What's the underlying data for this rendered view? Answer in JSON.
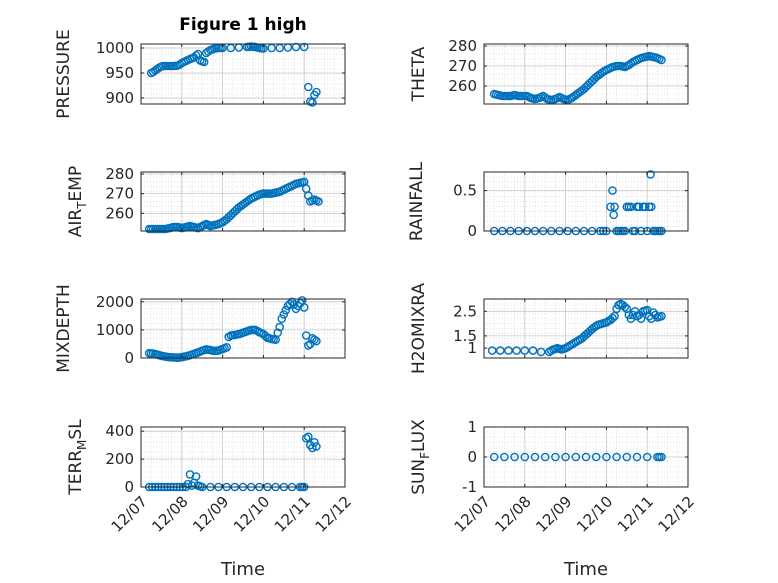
{
  "title": "Figure 1 high",
  "x_tick_labels": [
    "12/07",
    "12/08",
    "12/09",
    "12/10",
    "12/11",
    "12/12"
  ],
  "x_axis_label": "Time",
  "colors": {
    "marker": "#0072BD",
    "axes": "#262626",
    "grid": "#dcdcdc",
    "background": "#ffffff"
  },
  "chart_data": [
    {
      "type": "scatter",
      "id": "pressure",
      "ylabel": "PRESSURE",
      "title": "Figure 1 high",
      "ylim": [
        888,
        1008
      ],
      "yticks": [
        900,
        950,
        1000
      ],
      "ytick_labels": [
        "900",
        "950",
        "1000"
      ],
      "xlim": [
        7,
        12
      ],
      "grid": true,
      "marker": "open-circle",
      "points": [
        [
          7.25,
          950
        ],
        [
          7.3,
          952
        ],
        [
          7.35,
          955
        ],
        [
          7.4,
          958
        ],
        [
          7.45,
          961
        ],
        [
          7.5,
          963
        ],
        [
          7.55,
          964
        ],
        [
          7.6,
          964
        ],
        [
          7.7,
          964
        ],
        [
          7.8,
          964
        ],
        [
          7.9,
          965
        ],
        [
          7.95,
          967
        ],
        [
          8.0,
          970
        ],
        [
          8.1,
          974
        ],
        [
          8.2,
          978
        ],
        [
          8.3,
          981
        ],
        [
          8.35,
          985
        ],
        [
          8.4,
          988
        ],
        [
          8.45,
          975
        ],
        [
          8.55,
          972
        ],
        [
          8.6,
          990
        ],
        [
          8.7,
          996
        ],
        [
          8.8,
          999
        ],
        [
          8.9,
          1000
        ],
        [
          9.0,
          1000
        ],
        [
          9.2,
          1000
        ],
        [
          9.4,
          1001
        ],
        [
          9.6,
          1002
        ],
        [
          9.7,
          1003
        ],
        [
          9.8,
          1002
        ],
        [
          9.9,
          1000
        ],
        [
          10.0,
          999
        ],
        [
          10.2,
          1000
        ],
        [
          10.4,
          1000
        ],
        [
          10.6,
          1001
        ],
        [
          10.8,
          1002
        ],
        [
          11.0,
          1002
        ],
        [
          11.1,
          922
        ],
        [
          11.15,
          893
        ],
        [
          11.2,
          891
        ],
        [
          11.25,
          906
        ],
        [
          11.3,
          912
        ]
      ]
    },
    {
      "type": "scatter",
      "id": "theta",
      "ylabel": "THETA",
      "ylim": [
        251,
        281
      ],
      "yticks": [
        260,
        270,
        280
      ],
      "ytick_labels": [
        "260",
        "270",
        "280"
      ],
      "xlim": [
        7,
        12
      ],
      "grid": true,
      "marker": "open-circle",
      "points": [
        [
          7.25,
          256
        ],
        [
          7.35,
          255.5
        ],
        [
          7.45,
          255
        ],
        [
          7.55,
          255
        ],
        [
          7.65,
          255
        ],
        [
          7.75,
          255.5
        ],
        [
          7.85,
          255
        ],
        [
          7.95,
          255
        ],
        [
          8.05,
          255
        ],
        [
          8.15,
          254
        ],
        [
          8.25,
          253.5
        ],
        [
          8.35,
          254
        ],
        [
          8.45,
          255
        ],
        [
          8.55,
          253.5
        ],
        [
          8.65,
          253
        ],
        [
          8.75,
          253.5
        ],
        [
          8.85,
          254.5
        ],
        [
          8.95,
          253.5
        ],
        [
          9.05,
          253
        ],
        [
          9.15,
          254
        ],
        [
          9.25,
          255.5
        ],
        [
          9.35,
          257
        ],
        [
          9.45,
          258.5
        ],
        [
          9.55,
          260.5
        ],
        [
          9.65,
          262.5
        ],
        [
          9.75,
          264.5
        ],
        [
          9.85,
          266
        ],
        [
          9.95,
          267.5
        ],
        [
          10.05,
          268.5
        ],
        [
          10.15,
          269.5
        ],
        [
          10.25,
          270
        ],
        [
          10.35,
          270
        ],
        [
          10.45,
          269.5
        ],
        [
          10.55,
          270.5
        ],
        [
          10.65,
          272
        ],
        [
          10.75,
          273
        ],
        [
          10.85,
          274
        ],
        [
          10.95,
          274.5
        ],
        [
          11.05,
          275
        ],
        [
          11.15,
          274.5
        ],
        [
          11.25,
          274
        ],
        [
          11.35,
          273
        ]
      ]
    },
    {
      "type": "scatter",
      "id": "air_temp",
      "ylabel": "AIR_TEMP",
      "ylabel_main": "AIR",
      "ylabel_sub": "T",
      "ylabel_rest": "EMP",
      "ylim": [
        251,
        281
      ],
      "yticks": [
        260,
        270,
        280
      ],
      "ytick_labels": [
        "260",
        "270",
        "280"
      ],
      "xlim": [
        7,
        12
      ],
      "grid": true,
      "marker": "open-circle",
      "points": [
        [
          7.2,
          252
        ],
        [
          7.3,
          252
        ],
        [
          7.4,
          252
        ],
        [
          7.5,
          252
        ],
        [
          7.6,
          252
        ],
        [
          7.7,
          252.5
        ],
        [
          7.8,
          253
        ],
        [
          7.9,
          253
        ],
        [
          8.0,
          252.5
        ],
        [
          8.1,
          253
        ],
        [
          8.2,
          253.5
        ],
        [
          8.3,
          253
        ],
        [
          8.4,
          252.5
        ],
        [
          8.5,
          253.5
        ],
        [
          8.6,
          254.5
        ],
        [
          8.7,
          253.5
        ],
        [
          8.8,
          254
        ],
        [
          8.9,
          254.5
        ],
        [
          9.0,
          255.5
        ],
        [
          9.1,
          257
        ],
        [
          9.2,
          259
        ],
        [
          9.3,
          261
        ],
        [
          9.4,
          263
        ],
        [
          9.5,
          264.5
        ],
        [
          9.6,
          266
        ],
        [
          9.7,
          267.5
        ],
        [
          9.8,
          268.5
        ],
        [
          9.9,
          269.5
        ],
        [
          10.0,
          270
        ],
        [
          10.1,
          270
        ],
        [
          10.2,
          270
        ],
        [
          10.3,
          270.5
        ],
        [
          10.4,
          271
        ],
        [
          10.5,
          272
        ],
        [
          10.6,
          273
        ],
        [
          10.7,
          274
        ],
        [
          10.8,
          275
        ],
        [
          10.9,
          275.5
        ],
        [
          11.0,
          276
        ],
        [
          11.1,
          269
        ],
        [
          11.15,
          266
        ],
        [
          11.2,
          266.5
        ],
        [
          11.25,
          267
        ],
        [
          11.35,
          266
        ]
      ]
    },
    {
      "type": "scatter",
      "id": "rainfall",
      "ylabel": "RAINFALL",
      "ylim": [
        0,
        0.73
      ],
      "yticks": [
        0,
        0.5
      ],
      "ytick_labels": [
        "0",
        "0.5"
      ],
      "xlim": [
        7,
        12
      ],
      "grid": true,
      "marker": "open-circle",
      "points": [
        [
          7.25,
          0
        ],
        [
          7.45,
          0
        ],
        [
          7.65,
          0
        ],
        [
          7.85,
          0
        ],
        [
          8.05,
          0
        ],
        [
          8.25,
          0
        ],
        [
          8.45,
          0
        ],
        [
          8.65,
          0
        ],
        [
          8.85,
          0
        ],
        [
          9.05,
          0
        ],
        [
          9.25,
          0
        ],
        [
          9.45,
          0
        ],
        [
          9.65,
          0
        ],
        [
          9.85,
          0
        ],
        [
          10.0,
          0
        ],
        [
          10.1,
          0.3
        ],
        [
          10.15,
          0.5
        ],
        [
          10.18,
          0.2
        ],
        [
          10.2,
          0.3
        ],
        [
          10.25,
          0
        ],
        [
          10.3,
          0
        ],
        [
          10.35,
          0
        ],
        [
          10.45,
          0
        ],
        [
          10.5,
          0.3
        ],
        [
          10.55,
          0.3
        ],
        [
          10.6,
          0.3
        ],
        [
          10.65,
          0
        ],
        [
          10.7,
          0
        ],
        [
          10.75,
          0.3
        ],
        [
          10.8,
          0.3
        ],
        [
          10.85,
          0
        ],
        [
          10.9,
          0.3
        ],
        [
          10.95,
          0.3
        ],
        [
          11.0,
          0
        ],
        [
          11.05,
          0.3
        ],
        [
          11.08,
          0.7
        ],
        [
          11.1,
          0.3
        ],
        [
          11.15,
          0
        ],
        [
          11.25,
          0
        ],
        [
          11.35,
          0
        ]
      ]
    },
    {
      "type": "scatter",
      "id": "mixdepth",
      "ylabel": "MIXDEPTH",
      "ylim": [
        0,
        2100
      ],
      "yticks": [
        0,
        1000,
        2000
      ],
      "ytick_labels": [
        "0",
        "1000",
        "2000"
      ],
      "xlim": [
        7,
        12
      ],
      "grid": true,
      "marker": "open-circle",
      "points": [
        [
          7.2,
          170
        ],
        [
          7.3,
          160
        ],
        [
          7.4,
          120
        ],
        [
          7.5,
          80
        ],
        [
          7.6,
          50
        ],
        [
          7.7,
          30
        ],
        [
          7.8,
          20
        ],
        [
          7.9,
          10
        ],
        [
          8.0,
          30
        ],
        [
          8.1,
          60
        ],
        [
          8.2,
          100
        ],
        [
          8.3,
          150
        ],
        [
          8.4,
          200
        ],
        [
          8.5,
          260
        ],
        [
          8.6,
          310
        ],
        [
          8.7,
          280
        ],
        [
          8.8,
          250
        ],
        [
          8.9,
          270
        ],
        [
          9.0,
          320
        ],
        [
          9.1,
          380
        ],
        [
          9.15,
          750
        ],
        [
          9.2,
          800
        ],
        [
          9.3,
          820
        ],
        [
          9.4,
          850
        ],
        [
          9.5,
          900
        ],
        [
          9.6,
          950
        ],
        [
          9.7,
          1000
        ],
        [
          9.8,
          1000
        ],
        [
          9.9,
          920
        ],
        [
          10.0,
          850
        ],
        [
          10.1,
          720
        ],
        [
          10.2,
          680
        ],
        [
          10.3,
          650
        ],
        [
          10.35,
          900
        ],
        [
          10.4,
          1100
        ],
        [
          10.45,
          1400
        ],
        [
          10.5,
          1550
        ],
        [
          10.55,
          1700
        ],
        [
          10.6,
          1850
        ],
        [
          10.7,
          2000
        ],
        [
          10.75,
          1900
        ],
        [
          10.8,
          1750
        ],
        [
          10.9,
          1950
        ],
        [
          10.95,
          2050
        ],
        [
          11.0,
          1800
        ],
        [
          11.05,
          800
        ],
        [
          11.1,
          450
        ],
        [
          11.15,
          500
        ],
        [
          11.2,
          700
        ],
        [
          11.3,
          600
        ]
      ]
    },
    {
      "type": "scatter",
      "id": "h2omixra",
      "ylabel": "H2OMIXRA",
      "ylim": [
        0.6,
        3.0
      ],
      "yticks": [
        1,
        1.5,
        2.5
      ],
      "ytick_labels": [
        "1",
        "1.5",
        "2.5"
      ],
      "xlim": [
        7,
        12
      ],
      "grid": true,
      "marker": "open-circle",
      "points": [
        [
          7.2,
          0.9
        ],
        [
          7.4,
          0.9
        ],
        [
          7.6,
          0.9
        ],
        [
          7.8,
          0.9
        ],
        [
          8.0,
          0.9
        ],
        [
          8.2,
          0.9
        ],
        [
          8.4,
          0.85
        ],
        [
          8.6,
          0.85
        ],
        [
          8.7,
          0.95
        ],
        [
          8.8,
          1.0
        ],
        [
          8.9,
          0.95
        ],
        [
          9.0,
          1.0
        ],
        [
          9.1,
          1.1
        ],
        [
          9.2,
          1.2
        ],
        [
          9.3,
          1.3
        ],
        [
          9.4,
          1.4
        ],
        [
          9.5,
          1.55
        ],
        [
          9.6,
          1.7
        ],
        [
          9.7,
          1.85
        ],
        [
          9.8,
          1.95
        ],
        [
          9.9,
          2.0
        ],
        [
          10.0,
          2.05
        ],
        [
          10.1,
          2.15
        ],
        [
          10.2,
          2.3
        ],
        [
          10.25,
          2.6
        ],
        [
          10.3,
          2.75
        ],
        [
          10.35,
          2.8
        ],
        [
          10.4,
          2.75
        ],
        [
          10.5,
          2.6
        ],
        [
          10.55,
          2.35
        ],
        [
          10.6,
          2.2
        ],
        [
          10.7,
          2.5
        ],
        [
          10.75,
          2.3
        ],
        [
          10.8,
          2.35
        ],
        [
          10.85,
          2.2
        ],
        [
          10.9,
          2.5
        ],
        [
          11.0,
          2.55
        ],
        [
          11.05,
          2.3
        ],
        [
          11.1,
          2.2
        ],
        [
          11.15,
          2.45
        ],
        [
          11.25,
          2.25
        ],
        [
          11.35,
          2.3
        ]
      ]
    },
    {
      "type": "scatter",
      "id": "terr_msl",
      "ylabel": "TERR_MSL",
      "ylabel_main": "TERR",
      "ylabel_sub": "M",
      "ylabel_rest": "SL",
      "ylim": [
        0,
        430
      ],
      "yticks": [
        0,
        200,
        400
      ],
      "ytick_labels": [
        "0",
        "200",
        "400"
      ],
      "xlim": [
        7,
        12
      ],
      "grid": true,
      "marker": "open-circle",
      "points": [
        [
          7.2,
          0
        ],
        [
          7.35,
          0
        ],
        [
          7.5,
          0
        ],
        [
          7.65,
          0
        ],
        [
          7.8,
          0
        ],
        [
          7.95,
          0
        ],
        [
          8.1,
          0
        ],
        [
          8.15,
          20
        ],
        [
          8.2,
          90
        ],
        [
          8.25,
          10
        ],
        [
          8.3,
          30
        ],
        [
          8.35,
          75
        ],
        [
          8.4,
          10
        ],
        [
          8.5,
          0
        ],
        [
          8.7,
          0
        ],
        [
          8.9,
          0
        ],
        [
          9.1,
          0
        ],
        [
          9.3,
          0
        ],
        [
          9.5,
          0
        ],
        [
          9.7,
          0
        ],
        [
          9.9,
          0
        ],
        [
          10.1,
          0
        ],
        [
          10.3,
          0
        ],
        [
          10.5,
          0
        ],
        [
          10.7,
          0
        ],
        [
          10.9,
          0
        ],
        [
          11.0,
          0
        ],
        [
          11.05,
          350
        ],
        [
          11.1,
          360
        ],
        [
          11.15,
          300
        ],
        [
          11.2,
          280
        ],
        [
          11.25,
          320
        ],
        [
          11.3,
          290
        ]
      ]
    },
    {
      "type": "scatter",
      "id": "sun_flux",
      "ylabel": "SUN_FLUX",
      "ylabel_main": "SUN",
      "ylabel_sub": "F",
      "ylabel_rest": "LUX",
      "ylim": [
        -1,
        1
      ],
      "yticks": [
        -1,
        0,
        1
      ],
      "ytick_labels": [
        "-1",
        "0",
        "1"
      ],
      "xlim": [
        7,
        12
      ],
      "grid": true,
      "marker": "open-circle",
      "points": [
        [
          7.25,
          0
        ],
        [
          7.5,
          0
        ],
        [
          7.75,
          0
        ],
        [
          8.0,
          0
        ],
        [
          8.25,
          0
        ],
        [
          8.5,
          0
        ],
        [
          8.75,
          0
        ],
        [
          9.0,
          0
        ],
        [
          9.25,
          0
        ],
        [
          9.5,
          0
        ],
        [
          9.75,
          0
        ],
        [
          10.0,
          0
        ],
        [
          10.25,
          0
        ],
        [
          10.5,
          0
        ],
        [
          10.75,
          0
        ],
        [
          11.0,
          0
        ],
        [
          11.25,
          0
        ],
        [
          11.35,
          0
        ]
      ]
    }
  ]
}
